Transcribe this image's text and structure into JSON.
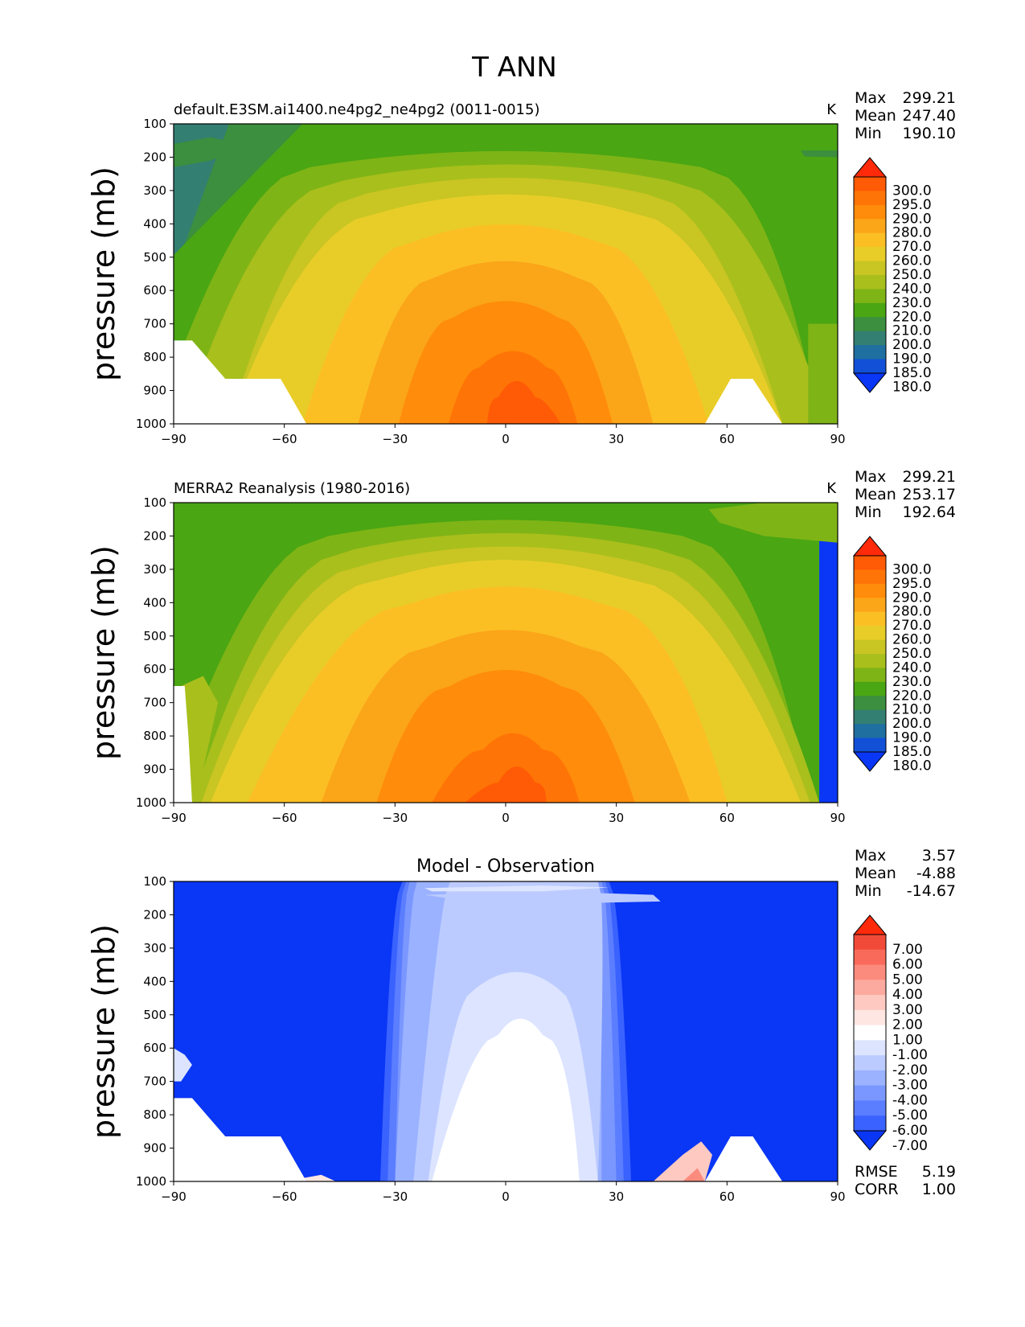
{
  "figure_title": "T ANN",
  "chart_data": [
    {
      "type": "heatmap",
      "id": "test",
      "title": "default.E3SM.ai1400.ne4pg2_ne4pg2 (0011-0015)",
      "units": "K",
      "ylabel": "pressure (mb)",
      "xlabel": "",
      "xlim": [
        -90,
        90
      ],
      "ylim": [
        1000,
        100
      ],
      "xticks": [
        "−90",
        "−60",
        "−30",
        "0",
        "30",
        "60",
        "90"
      ],
      "yticks": [
        "100",
        "200",
        "300",
        "400",
        "500",
        "600",
        "700",
        "800",
        "900",
        "1000"
      ],
      "stats": [
        {
          "label": "Max",
          "value": "299.21"
        },
        {
          "label": "Mean",
          "value": "247.40"
        },
        {
          "label": "Min",
          "value": "190.10"
        }
      ],
      "colorbar": {
        "levels": [
          "300.0",
          "295.0",
          "290.0",
          "280.0",
          "270.0",
          "260.0",
          "250.0",
          "240.0",
          "230.0",
          "220.0",
          "210.0",
          "200.0",
          "190.0",
          "185.0",
          "180.0"
        ],
        "colors": [
          "#ff2a0a",
          "#ff5a05",
          "#ff7406",
          "#ff8c0a",
          "#fba518",
          "#fbbf24",
          "#e8cd28",
          "#c9c523",
          "#a9bf1c",
          "#7fb416",
          "#4aa613",
          "#3b8f3e",
          "#337f72",
          "#1f6fa0",
          "#1250d8",
          "#0a36f5"
        ]
      },
      "bands": [
        {
          "level": 185,
          "color": "#1f6fa0",
          "c_top": -10,
          "c_bot": -20,
          "w_top": 140,
          "w_bot": 160,
          "p_top": 100
        },
        {
          "level": 190,
          "color": "#337f72",
          "c_top": -20,
          "c_bot": -15,
          "w_top": 190,
          "w_bot": 190,
          "p_top": 100
        },
        {
          "level": 200,
          "color": "#3b8f3e",
          "c_top": 20,
          "c_bot": -10,
          "w_top": 190,
          "w_bot": 190,
          "p_top": 100
        },
        {
          "level": 210,
          "color": "#4aa613",
          "c_top": 60,
          "c_bot": -20,
          "w_top": 230,
          "w_bot": 230,
          "p_top": 100
        },
        {
          "level": 220,
          "color": "#7fb416",
          "c_top": 0,
          "c_bot": -5,
          "w_top": 106,
          "w_bot": 180,
          "p_top": 230
        },
        {
          "level": 230,
          "color": "#a9bf1c",
          "c_top": 0,
          "c_bot": 0,
          "w_top": 88,
          "w_bot": 175,
          "p_top": 270
        },
        {
          "level": 240,
          "color": "#c9c523",
          "c_top": 0,
          "c_bot": 0,
          "w_top": 76,
          "w_bot": 150,
          "p_top": 310
        },
        {
          "level": 250,
          "color": "#e8cd28",
          "c_top": 0,
          "c_bot": 0,
          "w_top": 64,
          "w_bot": 150,
          "p_top": 360
        },
        {
          "level": 260,
          "color": "#fbbf24",
          "c_top": 0,
          "c_bot": 0,
          "w_top": 48,
          "w_bot": 110,
          "p_top": 450
        },
        {
          "level": 270,
          "color": "#fba518",
          "c_top": 0,
          "c_bot": 0,
          "w_top": 38,
          "w_bot": 80,
          "p_top": 560
        },
        {
          "level": 280,
          "color": "#ff8c0a",
          "c_top": 0,
          "c_bot": 0,
          "w_top": 28,
          "w_bot": 58,
          "p_top": 680
        },
        {
          "level": 290,
          "color": "#ff7406",
          "c_top": 2,
          "c_bot": 2,
          "w_top": 18,
          "w_bot": 35,
          "p_top": 830
        },
        {
          "level": 295,
          "color": "#ff5a05",
          "c_top": 3,
          "c_bot": 5,
          "w_top": 10,
          "w_bot": 20,
          "p_top": 920
        }
      ],
      "blobs": [
        {
          "color": "#3b8f3e",
          "points": [
            [
              -90,
              160
            ],
            [
              -80,
              140
            ],
            [
              -70,
              165
            ],
            [
              -80,
              210
            ],
            [
              -90,
              230
            ]
          ]
        },
        {
          "color": "#3b8f3e",
          "points": [
            [
              80,
              180
            ],
            [
              90,
              180
            ],
            [
              90,
              200
            ],
            [
              81,
              198
            ]
          ]
        },
        {
          "color": "#7fb416",
          "points": [
            [
              82,
              700
            ],
            [
              90,
              700
            ],
            [
              90,
              1000
            ],
            [
              82,
              1000
            ]
          ]
        }
      ],
      "masks": [
        {
          "points": [
            [
              -90,
              750
            ],
            [
              -85,
              750
            ],
            [
              -76,
              865
            ],
            [
              -61,
              865
            ],
            [
              -54,
              1000
            ],
            [
              -90,
              1000
            ]
          ]
        },
        {
          "points": [
            [
              54,
              1000
            ],
            [
              61,
              865
            ],
            [
              67,
              865
            ],
            [
              75,
              1000
            ]
          ]
        }
      ]
    },
    {
      "type": "heatmap",
      "id": "reference",
      "title": "MERRA2 Reanalysis (1980-2016)",
      "units": "K",
      "ylabel": "pressure (mb)",
      "xlabel": "",
      "xlim": [
        -90,
        90
      ],
      "ylim": [
        1000,
        100
      ],
      "xticks": [
        "−90",
        "−60",
        "−30",
        "0",
        "30",
        "60",
        "90"
      ],
      "yticks": [
        "100",
        "200",
        "300",
        "400",
        "500",
        "600",
        "700",
        "800",
        "900",
        "1000"
      ],
      "stats": [
        {
          "label": "Max",
          "value": "299.21"
        },
        {
          "label": "Mean",
          "value": "253.17"
        },
        {
          "label": "Min",
          "value": "192.64"
        }
      ],
      "colorbar": {
        "levels": [
          "300.0",
          "295.0",
          "290.0",
          "280.0",
          "270.0",
          "260.0",
          "250.0",
          "240.0",
          "230.0",
          "220.0",
          "210.0",
          "200.0",
          "190.0",
          "185.0",
          "180.0"
        ],
        "colors": [
          "#ff2a0a",
          "#ff5a05",
          "#ff7406",
          "#ff8c0a",
          "#fba518",
          "#fbbf24",
          "#e8cd28",
          "#c9c523",
          "#a9bf1c",
          "#7fb416",
          "#4aa613",
          "#3b8f3e",
          "#337f72",
          "#1f6fa0",
          "#1250d8",
          "#0a36f5"
        ]
      },
      "bands": [
        {
          "level": 200,
          "color": "#3b8f3e",
          "c_top": -5,
          "c_bot": -10,
          "w_top": 120,
          "w_bot": 160,
          "p_top": 100
        },
        {
          "level": 210,
          "color": "#4aa613",
          "c_top": -10,
          "c_bot": -10,
          "w_top": 190,
          "w_bot": 190,
          "p_top": 100
        },
        {
          "level": 220,
          "color": "#7fb416",
          "c_top": 0,
          "c_bot": -5,
          "w_top": 96,
          "w_bot": 175,
          "p_top": 200
        },
        {
          "level": 230,
          "color": "#a9bf1c",
          "c_top": 0,
          "c_bot": 0,
          "w_top": 82,
          "w_bot": 170,
          "p_top": 240
        },
        {
          "level": 240,
          "color": "#c9c523",
          "c_top": 0,
          "c_bot": 0,
          "w_top": 72,
          "w_bot": 165,
          "p_top": 280
        },
        {
          "level": 250,
          "color": "#e8cd28",
          "c_top": 0,
          "c_bot": 0,
          "w_top": 60,
          "w_bot": 160,
          "p_top": 320
        },
        {
          "level": 260,
          "color": "#fbbf24",
          "c_top": 0,
          "c_bot": -5,
          "w_top": 50,
          "w_bot": 130,
          "p_top": 400
        },
        {
          "level": 270,
          "color": "#fba518",
          "c_top": 0,
          "c_bot": 0,
          "w_top": 40,
          "w_bot": 100,
          "p_top": 530
        },
        {
          "level": 280,
          "color": "#ff8c0a",
          "c_top": 0,
          "c_bot": 0,
          "w_top": 30,
          "w_bot": 70,
          "p_top": 650
        },
        {
          "level": 290,
          "color": "#ff7406",
          "c_top": 2,
          "c_bot": 0,
          "w_top": 16,
          "w_bot": 40,
          "p_top": 840
        },
        {
          "level": 295,
          "color": "#ff5a05",
          "c_top": 3,
          "c_bot": 0,
          "w_top": 10,
          "w_bot": 22,
          "p_top": 940
        }
      ],
      "blobs": [
        {
          "color": "#7fb416",
          "points": [
            [
              55,
              120
            ],
            [
              70,
              100
            ],
            [
              90,
              100
            ],
            [
              90,
              220
            ],
            [
              70,
              200
            ],
            [
              58,
              160
            ]
          ]
        },
        {
          "color": "#a9bf1c",
          "points": [
            [
              -88,
              650
            ],
            [
              -82,
              620
            ],
            [
              -78,
              700
            ],
            [
              -80,
              800
            ],
            [
              -82,
              900
            ],
            [
              -83,
              1000
            ],
            [
              -87,
              1000
            ]
          ]
        }
      ],
      "masks": [
        {
          "points": [
            [
              -90,
              650
            ],
            [
              -87,
              650
            ],
            [
              -86,
              800
            ],
            [
              -85,
              1000
            ],
            [
              -90,
              1000
            ]
          ]
        }
      ]
    },
    {
      "type": "heatmap",
      "id": "difference",
      "title": "Model - Observation",
      "units": "",
      "ylabel": "pressure (mb)",
      "xlabel": "",
      "xlim": [
        -90,
        90
      ],
      "ylim": [
        1000,
        100
      ],
      "xticks": [
        "−90",
        "−60",
        "−30",
        "0",
        "30",
        "60",
        "90"
      ],
      "yticks": [
        "100",
        "200",
        "300",
        "400",
        "500",
        "600",
        "700",
        "800",
        "900",
        "1000"
      ],
      "stats": [
        {
          "label": "Max",
          "value": "3.57"
        },
        {
          "label": "Mean",
          "value": "-4.88"
        },
        {
          "label": "Min",
          "value": "-14.67"
        }
      ],
      "metrics": [
        {
          "label": "RMSE",
          "value": "5.19"
        },
        {
          "label": "CORR",
          "value": "1.00"
        }
      ],
      "colorbar": {
        "levels": [
          "7.00",
          "6.00",
          "5.00",
          "4.00",
          "3.00",
          "2.00",
          "1.00",
          "-1.00",
          "-2.00",
          "-3.00",
          "-4.00",
          "-5.00",
          "-6.00",
          "-7.00"
        ],
        "colors": [
          "#ff2a0a",
          "#f24a38",
          "#fa6a5a",
          "#fb8b7d",
          "#fcaa9f",
          "#fdc9c1",
          "#fee6e2",
          "#ffffff",
          "#dce4ff",
          "#bccbff",
          "#9ab2ff",
          "#7a97ff",
          "#5b7dff",
          "#3a62ff",
          "#0a36f5"
        ]
      },
      "bands": [
        {
          "level": -7,
          "color": "#3a62ff",
          "c_top": 0,
          "c_bot": 0,
          "w_top": 56,
          "w_bot": 68,
          "p_top": 100
        },
        {
          "level": -6,
          "color": "#5b7dff",
          "c_top": 0,
          "c_bot": 0,
          "w_top": 54,
          "w_bot": 64,
          "p_top": 100
        },
        {
          "level": -5,
          "color": "#7a97ff",
          "c_top": 0,
          "c_bot": 0,
          "w_top": 52,
          "w_bot": 60,
          "p_top": 100
        },
        {
          "level": -4,
          "color": "#9ab2ff",
          "c_top": 0,
          "c_bot": -2,
          "w_top": 48,
          "w_bot": 56,
          "p_top": 100
        },
        {
          "level": -3,
          "color": "#bccbff",
          "c_top": 5,
          "c_bot": 0,
          "w_top": 40,
          "w_bot": 50,
          "p_top": 100
        },
        {
          "level": -2,
          "color": "#dce4ff",
          "c_top": 3,
          "c_bot": 2,
          "w_top": 22,
          "w_bot": 46,
          "p_top": 420
        },
        {
          "level": -1,
          "color": "#ffffff",
          "c_top": 4,
          "c_bot": 0,
          "w_top": 12,
          "w_bot": 40,
          "p_top": 560
        }
      ],
      "blobs": [
        {
          "color": "#bccbff",
          "points": [
            [
              -22,
              140
            ],
            [
              10,
              130
            ],
            [
              40,
              140
            ],
            [
              42,
              160
            ],
            [
              20,
              165
            ],
            [
              -10,
              160
            ]
          ]
        },
        {
          "color": "#dce4ff",
          "points": [
            [
              -22,
              120
            ],
            [
              10,
              112
            ],
            [
              28,
              118
            ],
            [
              10,
              130
            ],
            [
              -20,
              130
            ]
          ]
        },
        {
          "color": "#dce4ff",
          "points": [
            [
              -90,
              600
            ],
            [
              -87,
              620
            ],
            [
              -85,
              650
            ],
            [
              -88,
              700
            ],
            [
              -90,
              700
            ]
          ]
        },
        {
          "color": "#fdc9c1",
          "points": [
            [
              40,
              1000
            ],
            [
              48,
              920
            ],
            [
              53,
              880
            ],
            [
              56,
              920
            ],
            [
              54,
              1000
            ]
          ]
        },
        {
          "color": "#fb8b7d",
          "points": [
            [
              48,
              1000
            ],
            [
              52,
              960
            ],
            [
              54,
              1000
            ]
          ]
        },
        {
          "color": "#fee6e2",
          "points": [
            [
              -55,
              990
            ],
            [
              -50,
              980
            ],
            [
              -46,
              1000
            ],
            [
              -55,
              1000
            ]
          ]
        }
      ],
      "masks": [
        {
          "points": [
            [
              -90,
              750
            ],
            [
              -85,
              750
            ],
            [
              -76,
              865
            ],
            [
              -61,
              865
            ],
            [
              -54,
              1000
            ],
            [
              -90,
              1000
            ]
          ]
        },
        {
          "points": [
            [
              54,
              1000
            ],
            [
              61,
              865
            ],
            [
              67,
              865
            ],
            [
              75,
              1000
            ]
          ]
        }
      ]
    }
  ]
}
